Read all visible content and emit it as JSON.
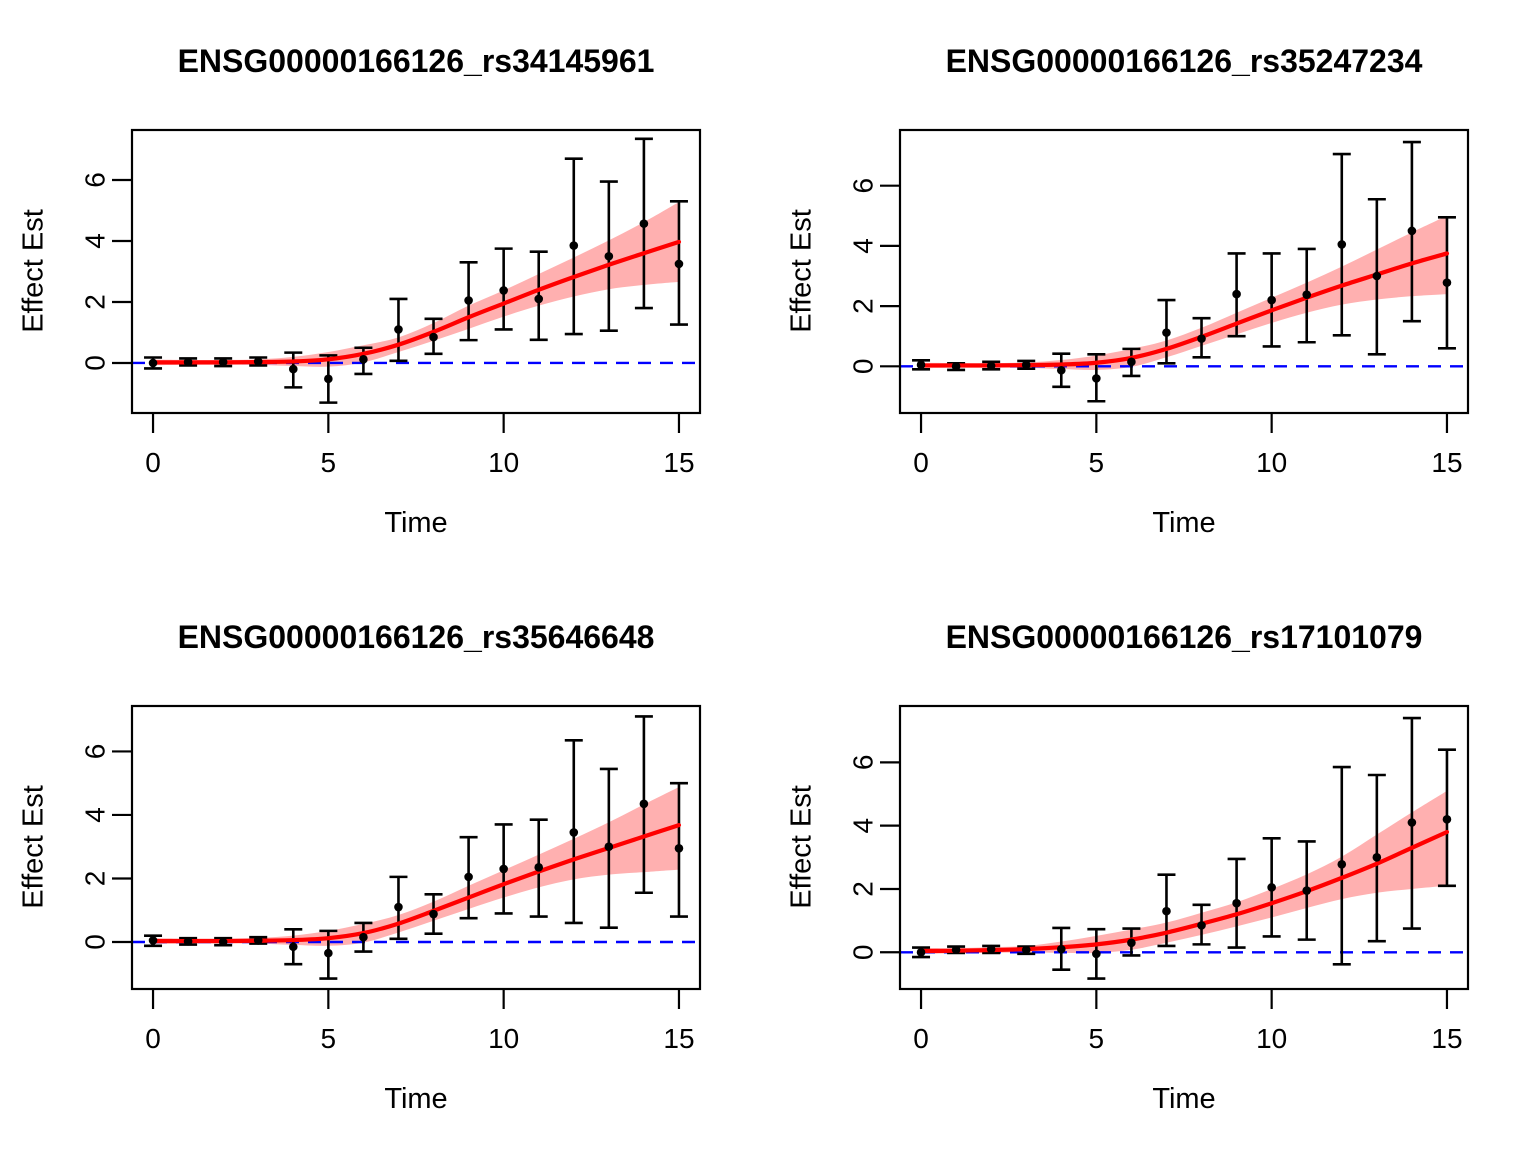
{
  "figure": {
    "background": "#ffffff",
    "colors": {
      "fit_line": "#ff0000",
      "confidence_band": "#ff0000",
      "confidence_band_opacity": 0.31,
      "zero_line": "#0000ff",
      "points_and_axes": "#000000"
    },
    "axes": {
      "xlabel": "Time",
      "ylabel": "Effect Est",
      "x_ticks": [
        0,
        5,
        10,
        15
      ],
      "y_ticks": [
        0,
        2,
        4,
        6
      ],
      "xlim": [
        -0.6,
        15.6
      ]
    }
  },
  "chart_data": [
    {
      "type": "scatter",
      "title": "ENSG00000166126_rs34145961",
      "xlabel": "Time",
      "ylabel": "Effect Est",
      "x": [
        0,
        1,
        2,
        3,
        4,
        5,
        6,
        7,
        8,
        9,
        10,
        11,
        12,
        13,
        14,
        15
      ],
      "effect_estimates": [
        0.0,
        0.03,
        0.03,
        0.05,
        -0.2,
        -0.52,
        0.12,
        1.1,
        0.85,
        2.05,
        2.38,
        2.1,
        3.85,
        3.5,
        4.57,
        3.25
      ],
      "ci_lower": [
        -0.18,
        -0.08,
        -0.1,
        -0.08,
        -0.8,
        -1.3,
        -0.36,
        0.07,
        0.3,
        0.75,
        1.1,
        0.76,
        0.95,
        1.06,
        1.8,
        1.26
      ],
      "ci_upper": [
        0.18,
        0.15,
        0.15,
        0.18,
        0.34,
        0.25,
        0.5,
        2.1,
        1.45,
        3.3,
        3.75,
        3.65,
        6.7,
        5.95,
        7.35,
        5.3
      ],
      "fit_curve": [
        0.02,
        0.02,
        0.02,
        0.03,
        0.05,
        0.12,
        0.3,
        0.6,
        1.02,
        1.5,
        1.95,
        2.4,
        2.82,
        3.22,
        3.6,
        3.97
      ],
      "band_lower": [
        -0.07,
        -0.06,
        -0.06,
        -0.06,
        -0.1,
        -0.12,
        0.02,
        0.36,
        0.73,
        1.12,
        1.52,
        1.88,
        2.18,
        2.42,
        2.56,
        2.66
      ],
      "band_upper": [
        0.11,
        0.1,
        0.1,
        0.12,
        0.2,
        0.36,
        0.58,
        0.84,
        1.31,
        1.88,
        2.38,
        2.92,
        3.46,
        4.02,
        4.62,
        5.28
      ],
      "ylim": [
        -1.64,
        7.64
      ],
      "zero_reference_line": 0
    },
    {
      "type": "scatter",
      "title": "ENSG00000166126_rs35247234",
      "xlabel": "Time",
      "ylabel": "Effect Est",
      "x": [
        0,
        1,
        2,
        3,
        4,
        5,
        6,
        7,
        8,
        9,
        10,
        11,
        12,
        13,
        14,
        15
      ],
      "effect_estimates": [
        0.05,
        0.0,
        0.02,
        0.05,
        -0.13,
        -0.4,
        0.15,
        1.12,
        0.92,
        2.4,
        2.2,
        2.38,
        4.05,
        3.0,
        4.5,
        2.78
      ],
      "ci_lower": [
        -0.1,
        -0.12,
        -0.1,
        -0.08,
        -0.68,
        -1.16,
        -0.32,
        0.1,
        0.3,
        1.0,
        0.66,
        0.8,
        1.03,
        0.4,
        1.5,
        0.6
      ],
      "ci_upper": [
        0.2,
        0.1,
        0.15,
        0.18,
        0.42,
        0.4,
        0.58,
        2.2,
        1.6,
        3.75,
        3.75,
        3.9,
        7.05,
        5.55,
        7.45,
        4.95
      ],
      "fit_curve": [
        0.03,
        0.03,
        0.03,
        0.04,
        0.06,
        0.12,
        0.28,
        0.58,
        0.98,
        1.42,
        1.86,
        2.28,
        2.68,
        3.05,
        3.42,
        3.75
      ],
      "band_lower": [
        -0.06,
        -0.05,
        -0.05,
        -0.05,
        -0.09,
        -0.12,
        -0.02,
        0.3,
        0.68,
        1.06,
        1.44,
        1.78,
        2.05,
        2.22,
        2.33,
        2.4
      ],
      "band_upper": [
        0.12,
        0.11,
        0.11,
        0.13,
        0.21,
        0.36,
        0.58,
        0.86,
        1.28,
        1.78,
        2.28,
        2.78,
        3.31,
        3.88,
        4.45,
        5.0
      ],
      "ylim": [
        -1.55,
        7.85
      ],
      "zero_reference_line": 0
    },
    {
      "type": "scatter",
      "title": "ENSG00000166126_rs35646648",
      "xlabel": "Time",
      "ylabel": "Effect Est",
      "x": [
        0,
        1,
        2,
        3,
        4,
        5,
        6,
        7,
        8,
        9,
        10,
        11,
        12,
        13,
        14,
        15
      ],
      "effect_estimates": [
        0.05,
        0.02,
        0.0,
        0.05,
        -0.15,
        -0.35,
        0.15,
        1.1,
        0.88,
        2.05,
        2.3,
        2.35,
        3.45,
        3.0,
        4.35,
        2.95
      ],
      "ci_lower": [
        -0.12,
        -0.08,
        -0.1,
        -0.05,
        -0.7,
        -1.15,
        -0.3,
        0.1,
        0.26,
        0.75,
        0.9,
        0.8,
        0.6,
        0.45,
        1.55,
        0.8
      ],
      "ci_upper": [
        0.2,
        0.12,
        0.12,
        0.15,
        0.4,
        0.35,
        0.6,
        2.05,
        1.5,
        3.3,
        3.7,
        3.85,
        6.35,
        5.45,
        7.1,
        5.0
      ],
      "fit_curve": [
        0.03,
        0.03,
        0.03,
        0.04,
        0.06,
        0.12,
        0.28,
        0.58,
        0.98,
        1.4,
        1.82,
        2.22,
        2.6,
        2.96,
        3.32,
        3.68
      ],
      "band_lower": [
        -0.06,
        -0.05,
        -0.05,
        -0.05,
        -0.09,
        -0.12,
        -0.02,
        0.3,
        0.67,
        1.04,
        1.4,
        1.72,
        1.97,
        2.12,
        2.2,
        2.28
      ],
      "band_upper": [
        0.12,
        0.11,
        0.11,
        0.13,
        0.2,
        0.35,
        0.57,
        0.85,
        1.27,
        1.77,
        2.26,
        2.75,
        3.25,
        3.77,
        4.33,
        4.88
      ],
      "ylim": [
        -1.48,
        7.43
      ],
      "zero_reference_line": 0
    },
    {
      "type": "scatter",
      "title": "ENSG00000166126_rs17101079",
      "xlabel": "Time",
      "ylabel": "Effect Est",
      "x": [
        0,
        1,
        2,
        3,
        4,
        5,
        6,
        7,
        8,
        9,
        10,
        11,
        12,
        13,
        14,
        15
      ],
      "effect_estimates": [
        0.0,
        0.08,
        0.1,
        0.08,
        0.1,
        -0.05,
        0.3,
        1.3,
        0.85,
        1.55,
        2.05,
        1.95,
        2.78,
        3.0,
        4.1,
        4.2
      ],
      "ci_lower": [
        -0.15,
        -0.02,
        -0.02,
        -0.05,
        -0.55,
        -0.83,
        -0.1,
        0.2,
        0.25,
        0.15,
        0.5,
        0.4,
        -0.38,
        0.35,
        0.75,
        2.1
      ],
      "ci_upper": [
        0.15,
        0.18,
        0.2,
        0.18,
        0.77,
        0.73,
        0.75,
        2.45,
        1.5,
        2.95,
        3.6,
        3.5,
        5.85,
        5.6,
        7.4,
        6.4
      ],
      "fit_curve": [
        0.04,
        0.05,
        0.07,
        0.1,
        0.16,
        0.25,
        0.4,
        0.62,
        0.9,
        1.2,
        1.55,
        1.93,
        2.35,
        2.8,
        3.3,
        3.8
      ],
      "band_lower": [
        -0.05,
        -0.03,
        -0.02,
        0.0,
        -0.02,
        -0.02,
        0.08,
        0.3,
        0.55,
        0.82,
        1.1,
        1.4,
        1.68,
        1.88,
        2.0,
        2.1
      ],
      "band_upper": [
        0.13,
        0.13,
        0.16,
        0.2,
        0.34,
        0.52,
        0.72,
        0.94,
        1.25,
        1.58,
        2.0,
        2.46,
        3.02,
        3.72,
        4.42,
        5.1
      ],
      "ylim": [
        -1.16,
        7.78
      ],
      "zero_reference_line": 0
    }
  ]
}
